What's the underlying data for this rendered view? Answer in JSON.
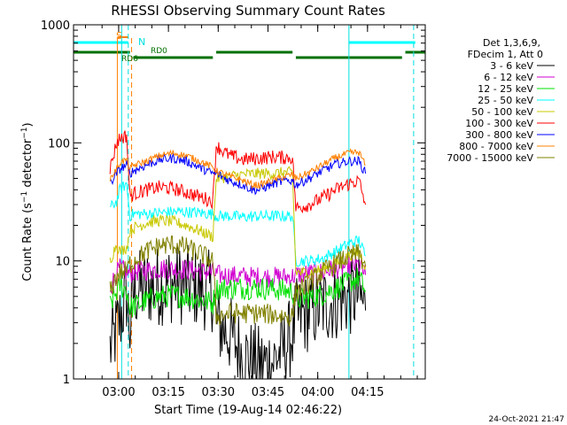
{
  "chart_data": {
    "type": "line",
    "title": "RHESSI Observing Summary Count Rates",
    "xlabel": "Start Time (19-Aug-14 02:46:22)",
    "ylabel": "Count Rate (s",
    "ylabel_sup1": "−1",
    "ylabel_mid": " detector",
    "ylabel_sup2": "−1",
    "ylabel_end": ")",
    "x_units": "minutes after 02:46:22",
    "x_range": [
      0,
      106
    ],
    "y_scale": "log",
    "y_range": [
      1,
      1000
    ],
    "x_ticks": [
      {
        "label": "03:00",
        "t": 13.6
      },
      {
        "label": "03:15",
        "t": 28.6
      },
      {
        "label": "03:30",
        "t": 43.6
      },
      {
        "label": "03:45",
        "t": 58.6
      },
      {
        "label": "04:00",
        "t": 73.6
      },
      {
        "label": "04:15",
        "t": 88.6
      }
    ],
    "y_ticks": [
      {
        "label": "1",
        "v": 1
      },
      {
        "label": "10",
        "v": 10
      },
      {
        "label": "100",
        "v": 100
      },
      {
        "label": "1000",
        "v": 1000
      }
    ],
    "legend": {
      "header": [
        "Det 1,3,6,9,",
        "FDecim 1, Att 0"
      ],
      "placement": "right"
    },
    "footer_date": "24-Oct-2021 21:47",
    "annotations": {
      "saa_label": "S",
      "night_label": "N",
      "rd_labels": [
        "RD6",
        "RD0"
      ]
    },
    "markers": {
      "cyan_bars": [
        [
          0,
          16.5
        ],
        [
          83,
          103
        ]
      ],
      "green_bars": [
        [
          0,
          17
        ],
        [
          18,
          42
        ],
        [
          43,
          66
        ],
        [
          67,
          99
        ],
        [
          100,
          106
        ]
      ],
      "cyan_solid_lines": [
        14.5,
        83
      ],
      "cyan_dashed_lines": [
        16.5,
        102.5
      ],
      "orange_solid_lines": [
        13.2
      ],
      "orange_dashed_lines": [
        17.5
      ]
    },
    "series": [
      {
        "name": "3 - 6 keV",
        "color": "#000000",
        "points": [
          [
            11,
            1.8
          ],
          [
            13,
            2.6
          ],
          [
            14,
            3.2
          ],
          [
            16,
            5.2
          ],
          [
            17,
            2.6
          ],
          [
            18,
            5.5
          ],
          [
            22,
            6.0
          ],
          [
            26,
            6.2
          ],
          [
            30,
            6.5
          ],
          [
            34,
            6.2
          ],
          [
            38,
            5.8
          ],
          [
            42,
            5.5
          ],
          [
            43,
            3.0
          ],
          [
            47,
            2.4
          ],
          [
            51,
            1.6
          ],
          [
            56,
            1.3
          ],
          [
            60,
            1.4
          ],
          [
            64,
            1.9
          ],
          [
            66,
            2.4
          ],
          [
            67,
            3.2
          ],
          [
            71,
            3.7
          ],
          [
            75,
            4.2
          ],
          [
            79,
            4.6
          ],
          [
            83,
            5.0
          ],
          [
            86,
            5.2
          ],
          [
            88,
            3.8
          ]
        ]
      },
      {
        "name": "6 - 12 keV",
        "color": "#d000d0",
        "points": [
          [
            11,
            6.0
          ],
          [
            13,
            7.8
          ],
          [
            14,
            8.6
          ],
          [
            16,
            8.0
          ],
          [
            17,
            7.8
          ],
          [
            18,
            8.1
          ],
          [
            22,
            8.3
          ],
          [
            26,
            8.6
          ],
          [
            30,
            8.5
          ],
          [
            34,
            8.5
          ],
          [
            38,
            8.2
          ],
          [
            42,
            8.0
          ],
          [
            43,
            7.6
          ],
          [
            47,
            7.5
          ],
          [
            51,
            7.4
          ],
          [
            56,
            7.3
          ],
          [
            60,
            7.3
          ],
          [
            64,
            7.3
          ],
          [
            66,
            7.4
          ],
          [
            67,
            7.6
          ],
          [
            71,
            7.8
          ],
          [
            75,
            8.0
          ],
          [
            79,
            8.6
          ],
          [
            83,
            9.0
          ],
          [
            86,
            9.2
          ],
          [
            88,
            7.6
          ]
        ]
      },
      {
        "name": "12 - 25 keV",
        "color": "#00e000",
        "points": [
          [
            11,
            4.2
          ],
          [
            13,
            5.5
          ],
          [
            14,
            6.2
          ],
          [
            16,
            5.6
          ],
          [
            17,
            4.0
          ],
          [
            18,
            4.1
          ],
          [
            22,
            4.6
          ],
          [
            26,
            5.0
          ],
          [
            30,
            5.1
          ],
          [
            34,
            5.0
          ],
          [
            38,
            4.7
          ],
          [
            42,
            4.4
          ],
          [
            43,
            5.8
          ],
          [
            47,
            5.9
          ],
          [
            51,
            5.9
          ],
          [
            56,
            5.9
          ],
          [
            60,
            5.8
          ],
          [
            64,
            5.6
          ],
          [
            66,
            5.5
          ],
          [
            67,
            4.7
          ],
          [
            71,
            4.9
          ],
          [
            75,
            5.2
          ],
          [
            79,
            5.9
          ],
          [
            83,
            6.6
          ],
          [
            86,
            7.2
          ],
          [
            88,
            5.6
          ]
        ]
      },
      {
        "name": "25 - 50 keV",
        "color": "#00ffff",
        "points": [
          [
            11,
            28
          ],
          [
            13,
            32
          ],
          [
            14,
            40
          ],
          [
            16,
            45
          ],
          [
            17,
            24
          ],
          [
            18,
            25
          ],
          [
            22,
            25
          ],
          [
            26,
            25.5
          ],
          [
            30,
            26
          ],
          [
            34,
            26
          ],
          [
            38,
            25.5
          ],
          [
            42,
            25
          ],
          [
            43,
            24
          ],
          [
            47,
            24
          ],
          [
            51,
            23.5
          ],
          [
            56,
            24
          ],
          [
            60,
            24
          ],
          [
            64,
            24
          ],
          [
            66,
            24
          ],
          [
            67,
            10
          ],
          [
            71,
            10
          ],
          [
            75,
            10.5
          ],
          [
            79,
            12
          ],
          [
            83,
            14
          ],
          [
            86,
            15
          ],
          [
            88,
            11
          ]
        ]
      },
      {
        "name": "50 - 100 keV",
        "color": "#c8c800",
        "points": [
          [
            11,
            10
          ],
          [
            13,
            14
          ],
          [
            14,
            12
          ],
          [
            16,
            13
          ],
          [
            17,
            18
          ],
          [
            18,
            19
          ],
          [
            22,
            21
          ],
          [
            26,
            22
          ],
          [
            30,
            21.5
          ],
          [
            34,
            20
          ],
          [
            38,
            18
          ],
          [
            42,
            16
          ],
          [
            43,
            50
          ],
          [
            47,
            52
          ],
          [
            51,
            54
          ],
          [
            56,
            55
          ],
          [
            60,
            55
          ],
          [
            64,
            56
          ],
          [
            66,
            56
          ],
          [
            67,
            8
          ],
          [
            71,
            8
          ],
          [
            75,
            8.5
          ],
          [
            79,
            9.5
          ],
          [
            83,
            11
          ],
          [
            86,
            12
          ],
          [
            88,
            9
          ]
        ]
      },
      {
        "name": "100 - 300 keV",
        "color": "#ff0000",
        "points": [
          [
            11,
            60
          ],
          [
            13,
            100
          ],
          [
            14,
            110
          ],
          [
            16,
            115
          ],
          [
            17,
            35
          ],
          [
            18,
            37
          ],
          [
            22,
            40
          ],
          [
            26,
            42
          ],
          [
            30,
            41
          ],
          [
            34,
            38
          ],
          [
            38,
            35
          ],
          [
            42,
            32
          ],
          [
            43,
            95
          ],
          [
            45,
            85
          ],
          [
            47,
            78
          ],
          [
            51,
            72
          ],
          [
            56,
            74
          ],
          [
            60,
            76
          ],
          [
            64,
            75
          ],
          [
            66,
            75
          ],
          [
            67,
            28
          ],
          [
            71,
            30
          ],
          [
            75,
            34
          ],
          [
            79,
            40
          ],
          [
            83,
            45
          ],
          [
            86,
            48
          ],
          [
            88,
            30
          ]
        ]
      },
      {
        "name": "300 - 800 keV",
        "color": "#0000ff",
        "points": [
          [
            11,
            45
          ],
          [
            13,
            55
          ],
          [
            14,
            60
          ],
          [
            16,
            65
          ],
          [
            17,
            55
          ],
          [
            18,
            58
          ],
          [
            22,
            65
          ],
          [
            26,
            72
          ],
          [
            30,
            74
          ],
          [
            34,
            70
          ],
          [
            38,
            62
          ],
          [
            42,
            55
          ],
          [
            43,
            55
          ],
          [
            47,
            48
          ],
          [
            51,
            44
          ],
          [
            54,
            40
          ],
          [
            56,
            40
          ],
          [
            60,
            45
          ],
          [
            64,
            48
          ],
          [
            66,
            48
          ],
          [
            67,
            44
          ],
          [
            71,
            50
          ],
          [
            75,
            58
          ],
          [
            79,
            66
          ],
          [
            83,
            70
          ],
          [
            86,
            70
          ],
          [
            88,
            55
          ]
        ]
      },
      {
        "name": "800 - 7000 keV",
        "color": "#ff8000",
        "points": [
          [
            11,
            50
          ],
          [
            13,
            60
          ],
          [
            14,
            68
          ],
          [
            16,
            72
          ],
          [
            17,
            60
          ],
          [
            18,
            64
          ],
          [
            22,
            70
          ],
          [
            26,
            78
          ],
          [
            30,
            82
          ],
          [
            34,
            78
          ],
          [
            38,
            70
          ],
          [
            42,
            62
          ],
          [
            43,
            58
          ],
          [
            47,
            52
          ],
          [
            51,
            48
          ],
          [
            54,
            44
          ],
          [
            56,
            44
          ],
          [
            60,
            48
          ],
          [
            64,
            52
          ],
          [
            66,
            54
          ],
          [
            67,
            50
          ],
          [
            71,
            56
          ],
          [
            75,
            65
          ],
          [
            79,
            75
          ],
          [
            83,
            82
          ],
          [
            86,
            83
          ],
          [
            88,
            65
          ]
        ]
      },
      {
        "name": "7000 - 15000 keV",
        "color": "#808000",
        "points": [
          [
            11,
            5.5
          ],
          [
            13,
            7.5
          ],
          [
            14,
            8.0
          ],
          [
            16,
            8.2
          ],
          [
            17,
            9.5
          ],
          [
            18,
            10
          ],
          [
            22,
            12
          ],
          [
            26,
            13.5
          ],
          [
            30,
            13.8
          ],
          [
            34,
            13
          ],
          [
            38,
            11.5
          ],
          [
            42,
            10
          ],
          [
            43,
            3.4
          ],
          [
            47,
            3.6
          ],
          [
            51,
            3.6
          ],
          [
            56,
            3.6
          ],
          [
            60,
            3.5
          ],
          [
            64,
            3.4
          ],
          [
            66,
            3.4
          ],
          [
            67,
            5.5
          ],
          [
            71,
            6.5
          ],
          [
            75,
            8.0
          ],
          [
            79,
            9.5
          ],
          [
            83,
            11
          ],
          [
            86,
            11.5
          ],
          [
            88,
            9
          ]
        ]
      }
    ]
  }
}
